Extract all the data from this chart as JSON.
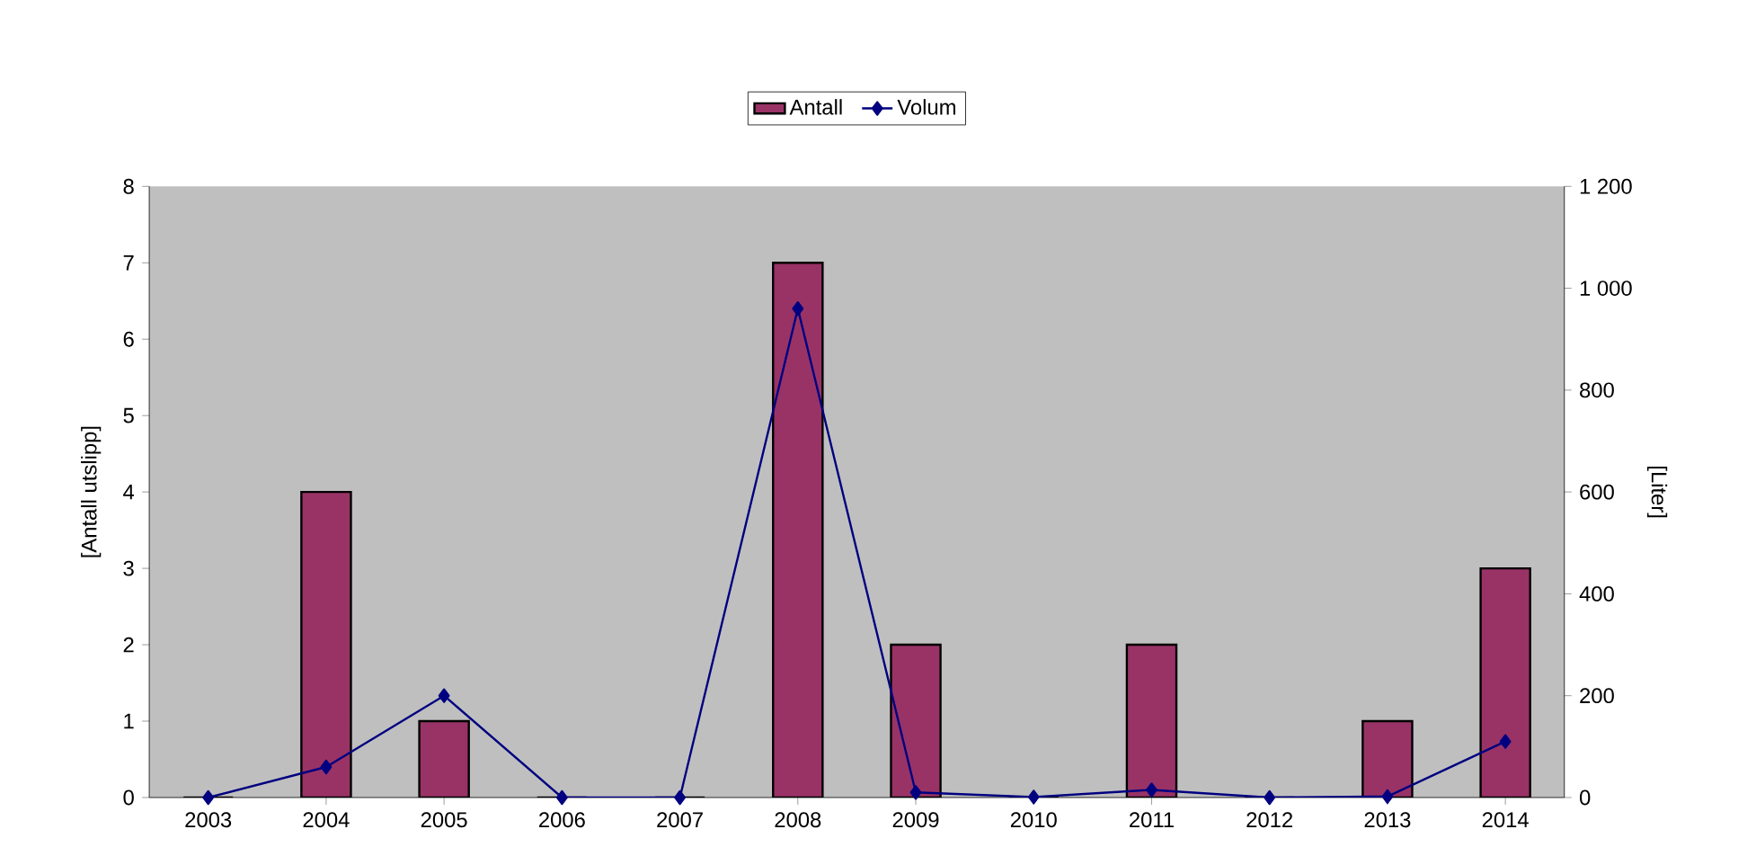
{
  "chart_data": {
    "type": "bar",
    "categories": [
      "2003",
      "2004",
      "2005",
      "2006",
      "2007",
      "2008",
      "2009",
      "2010",
      "2011",
      "2012",
      "2013",
      "2014"
    ],
    "series": [
      {
        "name": "Antall",
        "color": "#993366",
        "values": [
          0,
          4,
          1,
          0,
          0,
          7,
          2,
          0,
          2,
          0,
          1,
          3
        ]
      },
      {
        "name": "Volum",
        "type": "line",
        "axis": "y2",
        "color": "#000080",
        "marker": "diamond",
        "values": [
          0,
          60,
          200,
          0,
          0,
          960,
          10,
          1,
          15,
          0,
          2,
          110
        ]
      }
    ],
    "ylabel": "[Antall utslipp]",
    "y2label": "[Liter]",
    "ylim": [
      0,
      8
    ],
    "yticks": [
      0,
      1,
      2,
      3,
      4,
      5,
      6,
      7,
      8
    ],
    "y2lim": [
      0,
      1200
    ],
    "y2ticks": [
      0,
      200,
      400,
      600,
      800,
      {
        "value": 1000,
        "label": "1 000"
      },
      {
        "value": 1200,
        "label": "1 200"
      }
    ],
    "legend": "top",
    "grid": false
  }
}
